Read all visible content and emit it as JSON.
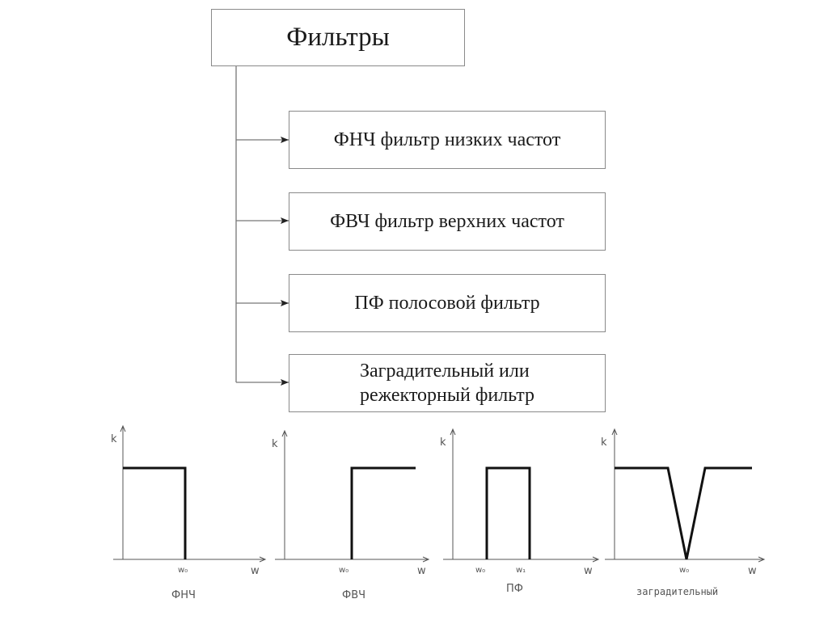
{
  "title": "Фильтры",
  "items": [
    "ФНЧ фильтр низких частот",
    "ФВЧ фильтр верхних частот",
    "ПФ полосовой фильтр",
    "Заградительный или\nрежекторный фильтр"
  ],
  "graphs": [
    {
      "y_label": "k",
      "x_label": "w",
      "ticks": [
        "w₀"
      ],
      "caption": "ФНЧ"
    },
    {
      "y_label": "k",
      "x_label": "w",
      "ticks": [
        "w₀"
      ],
      "caption": "ФВЧ"
    },
    {
      "y_label": "k",
      "x_label": "w",
      "ticks": [
        "w₀",
        "w₁"
      ],
      "caption": "ПФ"
    },
    {
      "y_label": "k",
      "x_label": "w",
      "ticks": [
        "w₀"
      ],
      "caption": "заградительный"
    }
  ]
}
